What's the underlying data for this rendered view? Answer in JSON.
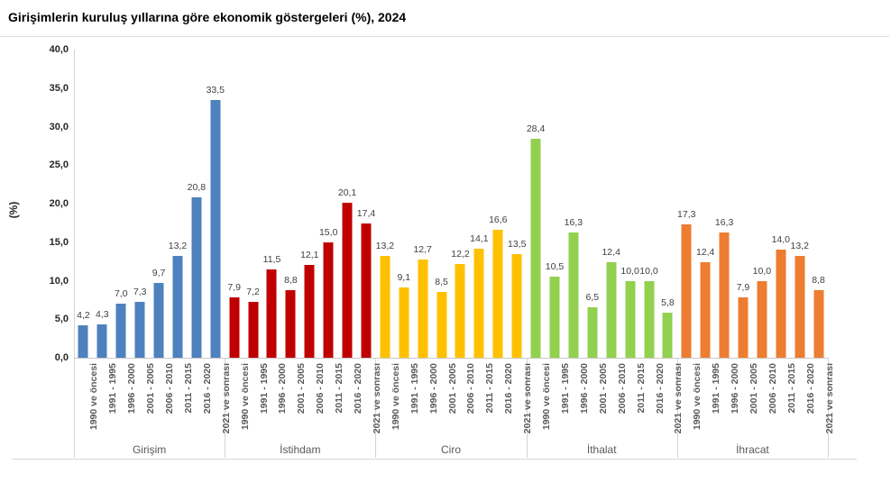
{
  "title": "Girişimlerin kuruluş yıllarına göre ekonomik göstergeleri (%), 2024",
  "chart_data": {
    "type": "bar",
    "title": "Girişimlerin kuruluş yıllarına göre ekonomik göstergeleri (%), 2024",
    "xlabel": "",
    "ylabel": "(%)",
    "ylim": [
      0,
      40
    ],
    "ytick_step": 5,
    "ytick_labels": [
      "0,0",
      "5,0",
      "10,0",
      "15,0",
      "20,0",
      "25,0",
      "30,0",
      "35,0",
      "40,0"
    ],
    "grid": false,
    "legend": "none",
    "value_labels_shown": true,
    "decimal_separator": ",",
    "categories": [
      "1990 ve öncesi",
      "1991 - 1995",
      "1996 - 2000",
      "2001 - 2005",
      "2006 - 2010",
      "2011 - 2015",
      "2016 - 2020",
      "2021 ve sonrası"
    ],
    "series": [
      {
        "name": "Girişim",
        "color": "#4E81BD",
        "values": [
          4.2,
          4.3,
          7.0,
          7.3,
          9.7,
          13.2,
          20.8,
          33.5
        ]
      },
      {
        "name": "İstihdam",
        "color": "#C00000",
        "values": [
          7.9,
          7.2,
          11.5,
          8.8,
          12.1,
          15.0,
          20.1,
          17.4
        ]
      },
      {
        "name": "Ciro",
        "color": "#FFC000",
        "values": [
          13.2,
          9.1,
          12.7,
          8.5,
          12.2,
          14.1,
          16.6,
          13.5
        ]
      },
      {
        "name": "İthalat",
        "color": "#92D050",
        "values": [
          28.4,
          10.5,
          16.3,
          6.5,
          12.4,
          10.0,
          10.0,
          5.8
        ]
      },
      {
        "name": "İhracat",
        "color": "#ED7D31",
        "values": [
          17.3,
          12.4,
          16.3,
          7.9,
          10.0,
          14.0,
          13.2,
          8.8
        ]
      }
    ]
  },
  "colors": {
    "background": "#ffffff",
    "axis_line": "#d4d4d4",
    "title_text": "#000000",
    "tick_label_text": "#262626",
    "category_label_text": "#595959",
    "value_label_text": "#404040"
  }
}
